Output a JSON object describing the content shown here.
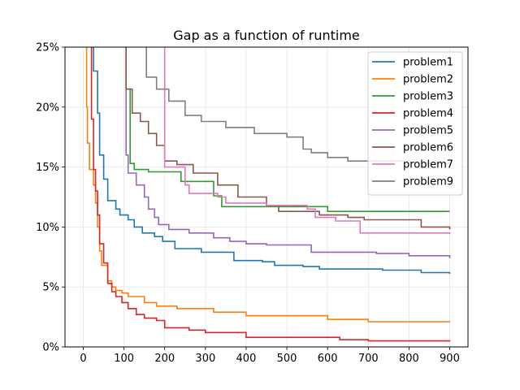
{
  "chart_data": {
    "type": "line",
    "title": "Gap as a function of runtime",
    "xlabel": "",
    "ylabel": "",
    "xlim": [
      -45,
      945
    ],
    "ylim": [
      0,
      25
    ],
    "x_ticks": [
      0,
      100,
      200,
      300,
      400,
      500,
      600,
      700,
      800,
      900
    ],
    "y_ticks": [
      0,
      5,
      10,
      15,
      20,
      25
    ],
    "y_tick_labels": [
      "0%",
      "5%",
      "10%",
      "15%",
      "20%",
      "25%"
    ],
    "grid": true,
    "legend_position": "top-right",
    "series": [
      {
        "name": "problem1",
        "color": "#1f77b4",
        "points": [
          [
            20,
            30
          ],
          [
            25,
            23
          ],
          [
            35,
            19.5
          ],
          [
            40,
            16
          ],
          [
            50,
            14
          ],
          [
            60,
            12.2
          ],
          [
            80,
            11.5
          ],
          [
            90,
            11.0
          ],
          [
            110,
            10.6
          ],
          [
            125,
            10.0
          ],
          [
            145,
            9.5
          ],
          [
            175,
            9.2
          ],
          [
            195,
            8.8
          ],
          [
            225,
            8.2
          ],
          [
            290,
            7.9
          ],
          [
            370,
            7.2
          ],
          [
            440,
            7.1
          ],
          [
            470,
            6.8
          ],
          [
            540,
            6.7
          ],
          [
            580,
            6.5
          ],
          [
            735,
            6.4
          ],
          [
            830,
            6.2
          ],
          [
            900,
            6.1
          ]
        ]
      },
      {
        "name": "problem2",
        "color": "#ff7f0e",
        "points": [
          [
            5,
            30
          ],
          [
            8,
            20
          ],
          [
            10,
            17
          ],
          [
            15,
            14.8
          ],
          [
            25,
            13.5
          ],
          [
            30,
            12
          ],
          [
            35,
            10
          ],
          [
            40,
            8
          ],
          [
            45,
            6.8
          ],
          [
            60,
            5.5
          ],
          [
            70,
            5.0
          ],
          [
            80,
            4.7
          ],
          [
            95,
            4.5
          ],
          [
            110,
            4.2
          ],
          [
            150,
            3.7
          ],
          [
            180,
            3.4
          ],
          [
            230,
            3.2
          ],
          [
            320,
            2.9
          ],
          [
            400,
            2.6
          ],
          [
            600,
            2.3
          ],
          [
            700,
            2.1
          ],
          [
            900,
            2.05
          ]
        ]
      },
      {
        "name": "problem3",
        "color": "#2ca02c",
        "points": [
          [
            100,
            30
          ],
          [
            105,
            21.5
          ],
          [
            115,
            15.3
          ],
          [
            125,
            14.8
          ],
          [
            160,
            14.6
          ],
          [
            240,
            13.8
          ],
          [
            320,
            12.6
          ],
          [
            340,
            11.7
          ],
          [
            600,
            11.3
          ],
          [
            900,
            11.3
          ]
        ]
      },
      {
        "name": "problem4",
        "color": "#d62728",
        "points": [
          [
            15,
            30
          ],
          [
            20,
            19
          ],
          [
            25,
            14.8
          ],
          [
            30,
            13
          ],
          [
            35,
            11
          ],
          [
            40,
            8.6
          ],
          [
            50,
            7
          ],
          [
            60,
            5.3
          ],
          [
            70,
            4.6
          ],
          [
            80,
            4.2
          ],
          [
            95,
            3.7
          ],
          [
            110,
            3.2
          ],
          [
            130,
            2.7
          ],
          [
            150,
            2.4
          ],
          [
            180,
            2.2
          ],
          [
            200,
            1.6
          ],
          [
            260,
            1.4
          ],
          [
            300,
            1.2
          ],
          [
            400,
            0.8
          ],
          [
            460,
            0.8
          ],
          [
            630,
            0.6
          ],
          [
            700,
            0.5
          ],
          [
            900,
            0.45
          ]
        ]
      },
      {
        "name": "problem5",
        "color": "#9467bd",
        "points": [
          [
            100,
            30
          ],
          [
            105,
            16
          ],
          [
            110,
            14.5
          ],
          [
            130,
            13.5
          ],
          [
            150,
            12.5
          ],
          [
            160,
            11.5
          ],
          [
            175,
            10.8
          ],
          [
            185,
            10.2
          ],
          [
            210,
            9.8
          ],
          [
            260,
            9.5
          ],
          [
            320,
            9.1
          ],
          [
            360,
            8.8
          ],
          [
            400,
            8.6
          ],
          [
            450,
            8.5
          ],
          [
            550,
            8.5
          ],
          [
            560,
            7.9
          ],
          [
            720,
            7.8
          ],
          [
            800,
            7.6
          ],
          [
            900,
            7.4
          ]
        ]
      },
      {
        "name": "problem6",
        "color": "#8c564b",
        "points": [
          [
            95,
            30
          ],
          [
            105,
            21.5
          ],
          [
            120,
            19.5
          ],
          [
            140,
            18.8
          ],
          [
            160,
            17.8
          ],
          [
            180,
            16.8
          ],
          [
            200,
            15.5
          ],
          [
            230,
            15.2
          ],
          [
            270,
            14.5
          ],
          [
            330,
            13.5
          ],
          [
            380,
            12.5
          ],
          [
            450,
            11.8
          ],
          [
            480,
            11.3
          ],
          [
            580,
            11.0
          ],
          [
            650,
            10.8
          ],
          [
            690,
            10.6
          ],
          [
            830,
            10.0
          ],
          [
            900,
            9.8
          ]
        ]
      },
      {
        "name": "problem7",
        "color": "#e377c2",
        "points": [
          [
            195,
            30
          ],
          [
            200,
            15
          ],
          [
            250,
            13.5
          ],
          [
            260,
            12.8
          ],
          [
            330,
            12.5
          ],
          [
            350,
            12.0
          ],
          [
            450,
            11.8
          ],
          [
            550,
            11.5
          ],
          [
            570,
            10.8
          ],
          [
            620,
            10.5
          ],
          [
            680,
            9.5
          ],
          [
            900,
            9.4
          ]
        ]
      },
      {
        "name": "problem9",
        "color": "#7f7f7f",
        "points": [
          [
            150,
            30
          ],
          [
            155,
            22.5
          ],
          [
            180,
            21.5
          ],
          [
            210,
            20.5
          ],
          [
            250,
            19.3
          ],
          [
            290,
            18.8
          ],
          [
            350,
            18.3
          ],
          [
            420,
            17.8
          ],
          [
            500,
            17.5
          ],
          [
            540,
            16.5
          ],
          [
            560,
            16.2
          ],
          [
            600,
            15.8
          ],
          [
            650,
            15.5
          ],
          [
            800,
            15.3
          ],
          [
            900,
            15.0
          ]
        ]
      }
    ]
  }
}
